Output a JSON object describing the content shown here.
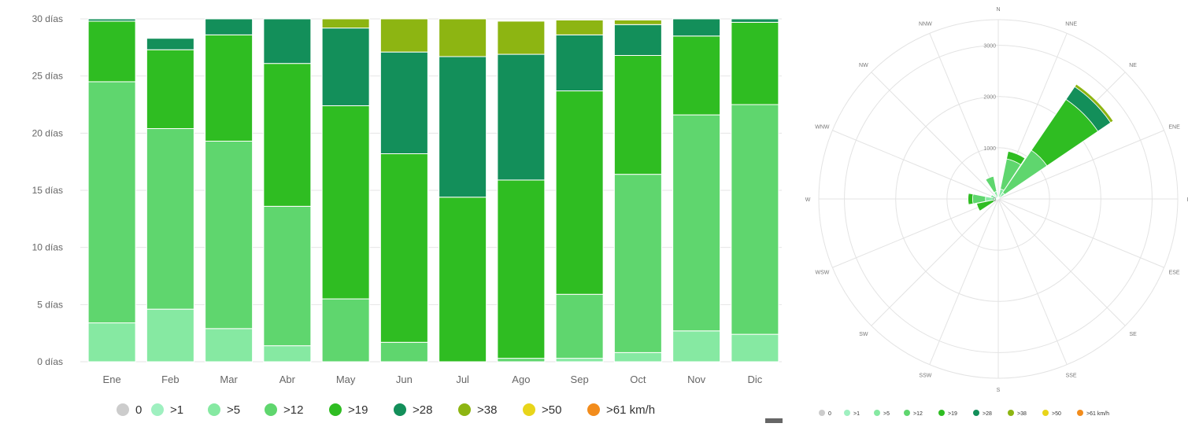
{
  "chart_data": [
    {
      "type": "bar",
      "stacked": true,
      "title": "",
      "xlabel": "",
      "ylabel": "",
      "categories": [
        "Ene",
        "Feb",
        "Mar",
        "Abr",
        "May",
        "Jun",
        "Jul",
        "Ago",
        "Sep",
        "Oct",
        "Nov",
        "Dic"
      ],
      "ylim": [
        0,
        30
      ],
      "y_ticks": [
        0,
        5,
        10,
        15,
        20,
        25,
        30
      ],
      "y_tick_labels": [
        "0 días",
        "5 días",
        "10 días",
        "15 días",
        "20 días",
        "25 días",
        "30 días"
      ],
      "grid": true,
      "legend_position": "bottom",
      "series": [
        {
          "name": "0",
          "color": "#cccccc",
          "values": [
            0,
            0,
            0,
            0,
            0,
            0,
            0,
            0,
            0,
            0,
            0,
            0
          ]
        },
        {
          "name": ">1",
          "color": "#9ff0c0",
          "values": [
            0,
            0,
            0,
            0,
            0,
            0,
            0,
            0,
            0,
            0,
            0,
            0
          ]
        },
        {
          "name": ">5",
          "color": "#86e9a2",
          "values": [
            3.4,
            4.6,
            2.9,
            1.4,
            0,
            0,
            0,
            0,
            0.3,
            0.8,
            2.7,
            2.4
          ]
        },
        {
          "name": ">12",
          "color": "#5fd66e",
          "values": [
            21.1,
            15.8,
            16.4,
            12.2,
            5.5,
            1.7,
            0,
            0.3,
            5.6,
            15.6,
            18.9,
            20.1
          ]
        },
        {
          "name": ">19",
          "color": "#2fbd22",
          "values": [
            5.3,
            6.9,
            9.3,
            12.5,
            16.9,
            16.5,
            14.4,
            15.6,
            17.8,
            10.4,
            6.9,
            7.2
          ]
        },
        {
          "name": ">28",
          "color": "#138f5a",
          "values": [
            0.2,
            1,
            1.4,
            3.9,
            6.8,
            8.9,
            12.3,
            11,
            4.9,
            2.7,
            1.5,
            0.3
          ]
        },
        {
          "name": ">38",
          "color": "#8db512",
          "values": [
            0,
            0,
            0,
            0,
            0.8,
            2.9,
            3.3,
            2.9,
            1.3,
            0.4,
            0,
            0
          ]
        },
        {
          "name": ">50",
          "color": "#e8d51a",
          "values": [
            0,
            0,
            0,
            0,
            0,
            0,
            0,
            0,
            0,
            0,
            0,
            0
          ]
        },
        {
          "name": ">61 km/h",
          "color": "#f28c1c",
          "values": [
            0,
            0,
            0,
            0,
            0,
            0,
            0,
            0,
            0,
            0,
            0,
            0
          ]
        }
      ]
    },
    {
      "type": "polar-bar",
      "title": "",
      "directions": [
        "N",
        "NNE",
        "NE",
        "ENE",
        "E",
        "ESE",
        "SE",
        "SSE",
        "S",
        "SSW",
        "SW",
        "WSW",
        "W",
        "WNW",
        "NW",
        "NNW"
      ],
      "radial_ticks": [
        0,
        1000,
        2000,
        3000
      ],
      "radial_tick_labels": [
        "0",
        "1000",
        "2000",
        "3000"
      ],
      "r_max": 3500,
      "grid": true,
      "legend_position": "bottom",
      "series": [
        {
          "name": "0",
          "color": "#cccccc",
          "values": [
            0,
            0,
            0,
            0,
            0,
            0,
            0,
            0,
            0,
            0,
            0,
            0,
            0,
            0,
            0,
            0
          ]
        },
        {
          "name": ">1",
          "color": "#9ff0c0",
          "values": [
            0,
            0,
            0,
            0,
            0,
            0,
            0,
            0,
            0,
            0,
            0,
            0,
            0,
            0,
            0,
            0
          ]
        },
        {
          "name": ">5",
          "color": "#86e9a2",
          "values": [
            0,
            200,
            150,
            0,
            0,
            0,
            0,
            0,
            0,
            0,
            0,
            20,
            250,
            150,
            80,
            150
          ]
        },
        {
          "name": ">12",
          "color": "#5fd66e",
          "values": [
            0,
            600,
            1000,
            0,
            0,
            0,
            0,
            0,
            0,
            0,
            0,
            80,
            250,
            0,
            0,
            300
          ]
        },
        {
          "name": ">19",
          "color": "#2fbd22",
          "values": [
            0,
            150,
            1200,
            0,
            0,
            0,
            0,
            0,
            0,
            0,
            0,
            330,
            90,
            0,
            0,
            0
          ]
        },
        {
          "name": ">28",
          "color": "#138f5a",
          "values": [
            0,
            0,
            300,
            0,
            0,
            0,
            0,
            0,
            0,
            0,
            0,
            0,
            0,
            0,
            0,
            0
          ]
        },
        {
          "name": ">38",
          "color": "#8db512",
          "values": [
            0,
            0,
            60,
            0,
            0,
            0,
            0,
            0,
            0,
            0,
            0,
            0,
            0,
            0,
            0,
            0
          ]
        },
        {
          "name": ">50",
          "color": "#e8d51a",
          "values": [
            0,
            0,
            0,
            0,
            0,
            0,
            0,
            0,
            0,
            0,
            0,
            0,
            0,
            0,
            0,
            0
          ]
        },
        {
          "name": ">61 km/h",
          "color": "#f28c1c",
          "values": [
            0,
            0,
            0,
            0,
            0,
            0,
            0,
            0,
            0,
            0,
            0,
            0,
            0,
            0,
            0,
            0
          ]
        }
      ]
    }
  ]
}
